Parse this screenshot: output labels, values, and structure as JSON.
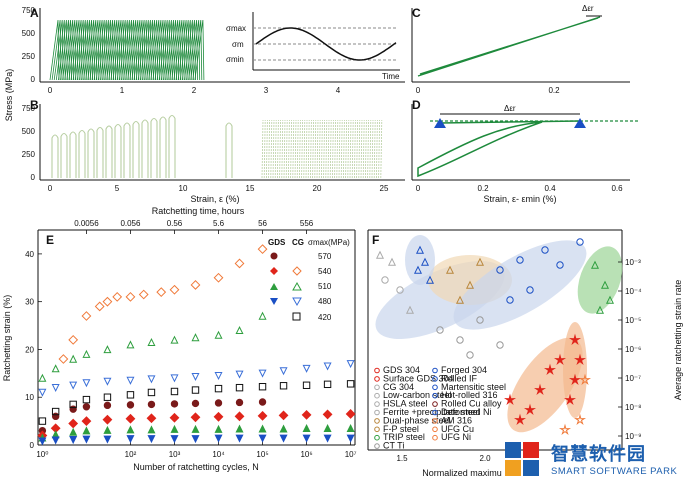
{
  "colors": {
    "green": "#1e8a3c",
    "lightgreen": "#b9cfa3",
    "darkred": "#7a1a1a",
    "red": "#e0251b",
    "orange": "#f07a3a",
    "green2": "#2e9e3e",
    "blue": "#1a4fc4",
    "blue2": "#3a6fd8",
    "black": "#111111"
  },
  "panels": {
    "A": "A",
    "B": "B",
    "C": "C",
    "D": "D",
    "E": "E",
    "F": "F"
  },
  "top": {
    "ylabel": "Stress (MPa)",
    "yticks": [
      "0",
      "250",
      "500",
      "750"
    ],
    "xlabel": "Strain, ε (%)",
    "xticks": [
      "0",
      "1",
      "2",
      "3",
      "4",
      "5",
      "10",
      "15",
      "20",
      "25"
    ],
    "inset_labels": {
      "smax": "σmax",
      "sm": "σm",
      "smin": "σmin",
      "time": "Time"
    },
    "c_xticks": [
      "0",
      "0.2"
    ],
    "cd_xticks": [
      "0",
      "0.2",
      "0.4",
      "0.6"
    ],
    "cd_xlabel": "Strain, ε- εmin (%)",
    "d_delta": "Δεr",
    "c_delta": "Δεr"
  },
  "chart_data": [
    {
      "type": "scatter",
      "title": "E",
      "top_axis_label": "Ratchetting time, hours",
      "top_ticks": [
        "0.0056",
        "0.056",
        "0.56",
        "5.6",
        "56",
        "556"
      ],
      "xlabel": "Number of ratchetting cycles, N",
      "ylabel": "Ratchetting strain (%)",
      "xticks": [
        "10⁰",
        "10²",
        "10³",
        "10⁴",
        "10⁵",
        "10⁶",
        "10⁷"
      ],
      "yticks": [
        "0",
        "10",
        "20",
        "30",
        "40"
      ],
      "ylim": [
        0,
        45
      ],
      "legend": {
        "gds": "GDS",
        "cg": "CG",
        "smax": "σmax(MPa)",
        "levels": [
          "570",
          "540",
          "510",
          "480",
          "420"
        ]
      },
      "series": [
        {
          "name": "GDS 570",
          "x": [
            1,
            2,
            5,
            10,
            30,
            100,
            300,
            1000,
            3000,
            10000,
            30000,
            100000
          ],
          "values": [
            3,
            6,
            7.5,
            8,
            8.3,
            8.4,
            8.5,
            8.6,
            8.7,
            8.8,
            8.9,
            9
          ]
        },
        {
          "name": "GDS 540",
          "x": [
            1,
            2,
            5,
            10,
            30,
            100,
            300,
            1000,
            3000,
            10000,
            30000,
            100000,
            300000,
            1000000,
            3000000,
            10000000
          ],
          "values": [
            2,
            3.5,
            4.5,
            5,
            5.3,
            5.5,
            5.6,
            5.7,
            5.8,
            5.9,
            6,
            6.1,
            6.2,
            6.3,
            6.4,
            6.5
          ]
        },
        {
          "name": "GDS 510",
          "x": [
            1,
            2,
            5,
            10,
            30,
            100,
            300,
            1000,
            3000,
            10000,
            30000,
            100000,
            300000,
            1000000,
            3000000,
            10000000
          ],
          "values": [
            1.5,
            2.2,
            2.7,
            3,
            3.1,
            3.2,
            3.2,
            3.3,
            3.3,
            3.3,
            3.4,
            3.4,
            3.4,
            3.5,
            3.5,
            3.5
          ]
        },
        {
          "name": "GDS 480",
          "x": [
            1,
            2,
            5,
            10,
            30,
            100,
            300,
            1000,
            3000,
            10000,
            30000,
            100000,
            300000,
            1000000,
            3000000,
            10000000
          ],
          "values": [
            0.8,
            1,
            1.1,
            1.2,
            1.2,
            1.3,
            1.3,
            1.3,
            1.3,
            1.4,
            1.4,
            1.4,
            1.4,
            1.4,
            1.4,
            1.4
          ]
        },
        {
          "name": "CG 540",
          "x": [
            3,
            5,
            10,
            20,
            30,
            50,
            100,
            200,
            500,
            1000,
            3000,
            10000,
            30000,
            100000
          ],
          "values": [
            18,
            22,
            27,
            29,
            30,
            31,
            31,
            31.5,
            32,
            32.5,
            33.5,
            35,
            38,
            41
          ]
        },
        {
          "name": "CG 510",
          "x": [
            1,
            2,
            5,
            10,
            30,
            100,
            300,
            1000,
            3000,
            10000,
            30000,
            100000
          ],
          "values": [
            14,
            16,
            18,
            19,
            20,
            21,
            21.5,
            22,
            22.5,
            23,
            24,
            27
          ]
        },
        {
          "name": "CG 480",
          "x": [
            1,
            2,
            5,
            10,
            30,
            100,
            300,
            1000,
            3000,
            10000,
            30000,
            100000,
            300000,
            1000000,
            3000000,
            10000000
          ],
          "values": [
            11,
            12,
            12.5,
            13,
            13.3,
            13.5,
            13.8,
            14,
            14.3,
            14.5,
            14.8,
            15,
            15.5,
            16,
            16.5,
            17
          ]
        },
        {
          "name": "CG 420",
          "x": [
            1,
            2,
            5,
            10,
            30,
            100,
            300,
            1000,
            3000,
            10000,
            30000,
            100000,
            300000,
            1000000,
            3000000,
            10000000
          ],
          "values": [
            5,
            7,
            8.5,
            9.5,
            10,
            10.5,
            11,
            11.2,
            11.5,
            11.8,
            12,
            12.2,
            12.4,
            12.5,
            12.7,
            12.8
          ]
        }
      ]
    },
    {
      "type": "scatter",
      "title": "F",
      "xlabel": "Normalized maximu",
      "ylabel": "Average ratchetting strain rate",
      "xticks": [
        "1.5",
        "2.0"
      ],
      "yticks": [
        "10⁻³",
        "10⁻⁴",
        "10⁻⁵",
        "10⁻⁶",
        "10⁻⁷",
        "10⁻⁸",
        "10⁻⁹"
      ],
      "legend": [
        "GDS 304",
        "Surface GDS 304",
        "CG 304",
        "Low-carbon steel",
        "HSLA steel",
        "Ferrite +precipitate steel",
        "Dual-phase steel",
        "F-P steel",
        "TRIP steel",
        "CT Ti",
        "Forged 304",
        "Rolled IF",
        "Martensitic steel",
        "Hot-rolled 316",
        "Rolled Cu alloy",
        "Deformed Ni",
        "AM 316",
        "UFG Cu",
        "UFG Ni"
      ]
    }
  ],
  "watermark": {
    "cn": "智慧软件园",
    "en": "SMART SOFTWARE PARK"
  }
}
